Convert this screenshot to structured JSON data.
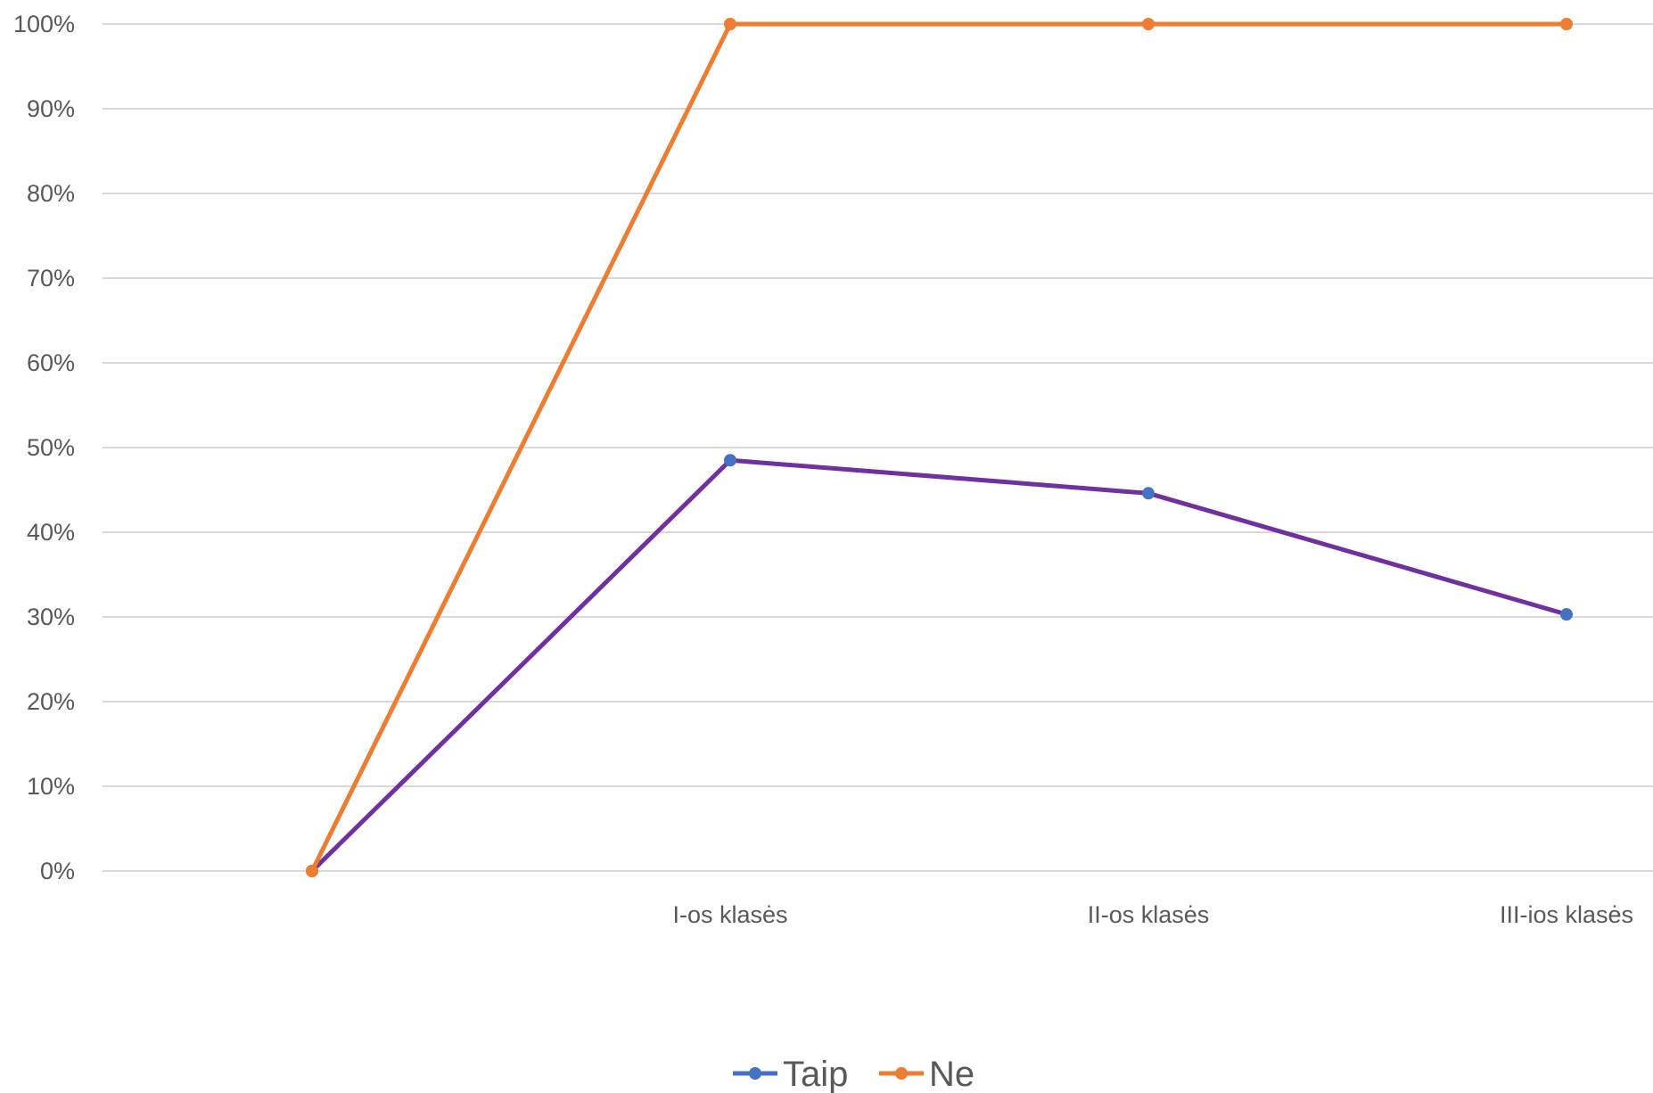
{
  "chart_data": {
    "type": "line",
    "categories": [
      "",
      "I-os klasės",
      "II-os klasės",
      "III-ios klasės"
    ],
    "ylim": [
      0,
      1
    ],
    "yticks": [
      "0%",
      "10%",
      "20%",
      "30%",
      "40%",
      "50%",
      "60%",
      "70%",
      "80%",
      "90%",
      "100%"
    ],
    "grid": true,
    "legend_position": "bottom",
    "series": [
      {
        "name": "Taip",
        "values": [
          0,
          0.485,
          0.446,
          0.303
        ],
        "line_color": "#7030a0",
        "marker_color": "#4472c4",
        "legend_color": "#4472c4"
      },
      {
        "name": "Ne",
        "values": [
          0,
          1,
          1,
          1
        ],
        "line_color": "#ed7d31",
        "marker_color": "#ed7d31",
        "legend_color": "#ed7d31"
      }
    ]
  }
}
